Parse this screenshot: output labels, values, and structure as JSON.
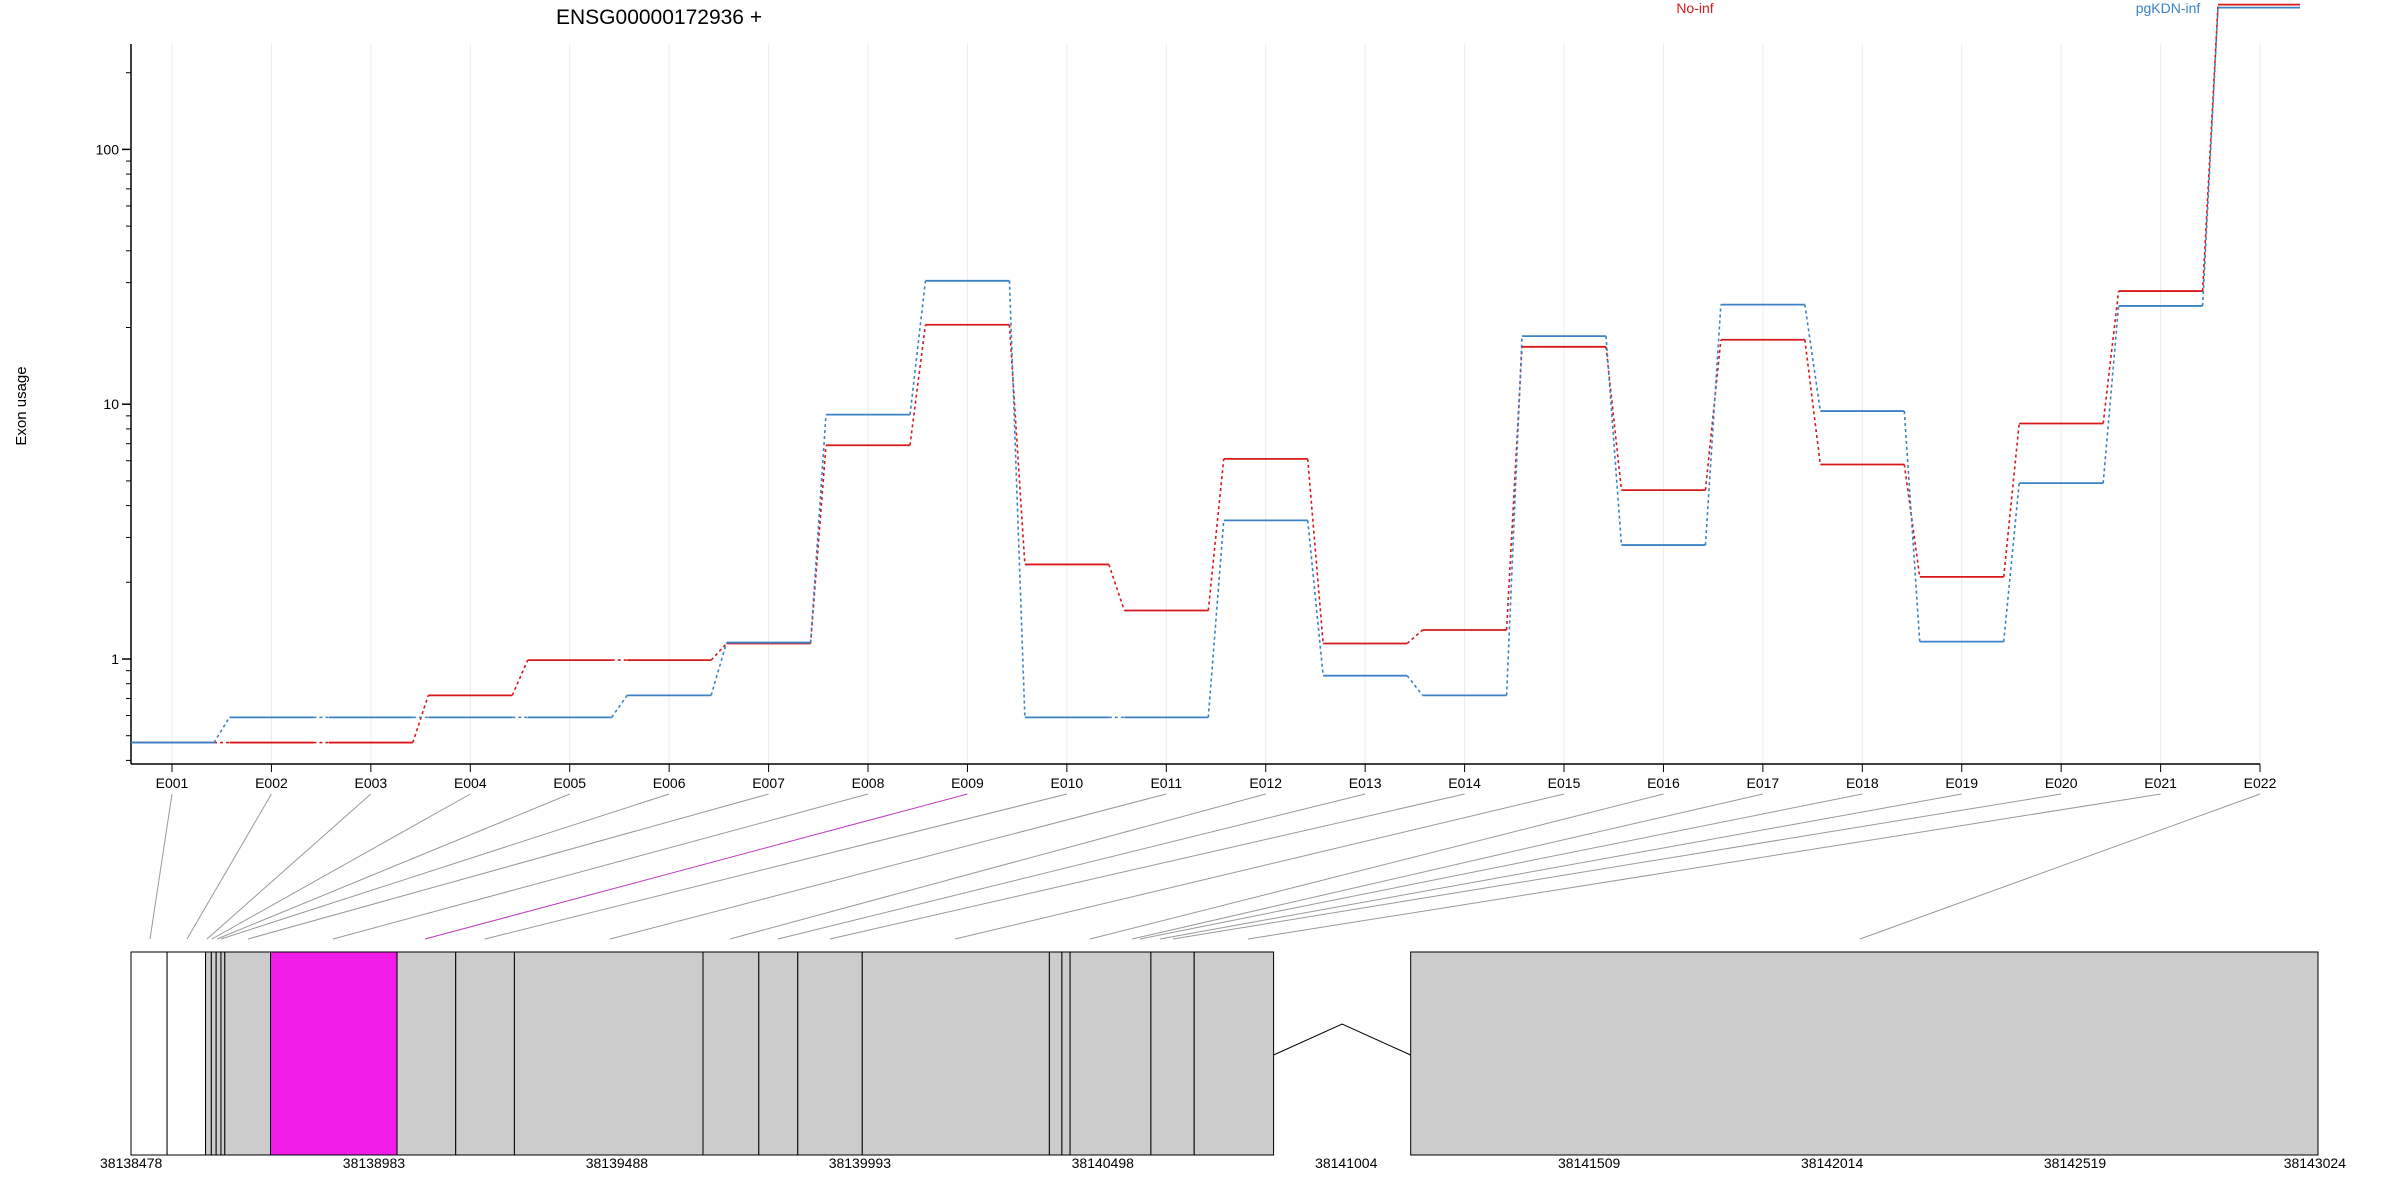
{
  "chart_data": {
    "type": "line",
    "title": "ENSG00000172936 +",
    "ylabel": "Exon usage",
    "xlabel": "",
    "y_scale": "log",
    "y_ticks": [
      "1",
      "10",
      "100"
    ],
    "y_tick_values": [
      1,
      10,
      100
    ],
    "grid": "vertical",
    "legend_placement": "top-right",
    "categories": [
      "E001",
      "E002",
      "E003",
      "E004",
      "E005",
      "E006",
      "E007",
      "E008",
      "E009",
      "E010",
      "E011",
      "E012",
      "E013",
      "E014",
      "E015",
      "E016",
      "E017",
      "E018",
      "E019",
      "E020",
      "E021",
      "E022"
    ],
    "series": [
      {
        "name": "No-inf",
        "color": "#d7191c",
        "values": [
          0.47,
          0.47,
          0.47,
          0.72,
          0.99,
          0.99,
          1.15,
          6.9,
          20.5,
          2.35,
          1.55,
          6.1,
          1.15,
          1.3,
          16.8,
          4.6,
          17.9,
          5.8,
          2.1,
          8.4,
          27.8,
          370
        ]
      },
      {
        "name": "pgKDN-inf",
        "color": "#3b83c4",
        "values": [
          0.47,
          0.59,
          0.59,
          0.59,
          0.59,
          0.72,
          1.16,
          9.1,
          30.5,
          0.59,
          0.59,
          3.5,
          0.86,
          0.72,
          18.5,
          2.8,
          24.6,
          9.4,
          1.17,
          4.9,
          24.3,
          360
        ]
      }
    ],
    "gene_model": {
      "coordinate_labels": [
        "38138478",
        "38138983",
        "38139488",
        "38139993",
        "38140498",
        "38141004",
        "38141509",
        "38142014",
        "38142519",
        "38143024"
      ],
      "coordinate_values": [
        38138478,
        38138983,
        38139488,
        38139993,
        38140498,
        38141004,
        38141509,
        38142014,
        38142519,
        38143024
      ],
      "exons": [
        {
          "id": "E001",
          "start": 38138478,
          "end": 38138553,
          "fill": "#ffffff"
        },
        {
          "id": "E002",
          "start": 38138553,
          "end": 38138633,
          "fill": "#ffffff"
        },
        {
          "id": "E003",
          "start": 38138633,
          "end": 38138645,
          "fill": "#cccccc"
        },
        {
          "id": "E004",
          "start": 38138645,
          "end": 38138655,
          "fill": "#cccccc"
        },
        {
          "id": "E005",
          "start": 38138655,
          "end": 38138665,
          "fill": "#cccccc"
        },
        {
          "id": "E006",
          "start": 38138665,
          "end": 38138673,
          "fill": "#cccccc"
        },
        {
          "id": "E007",
          "start": 38138673,
          "end": 38138768,
          "fill": "#cccccc"
        },
        {
          "id": "E008",
          "start": 38138768,
          "end": 38139031,
          "fill": "#f21ce8"
        },
        {
          "id": "E009",
          "start": 38139031,
          "end": 38139153,
          "fill": "#cccccc"
        },
        {
          "id": "E010",
          "start": 38139153,
          "end": 38139275,
          "fill": "#cccccc"
        },
        {
          "id": "E011",
          "start": 38139275,
          "end": 38139667,
          "fill": "#cccccc"
        },
        {
          "id": "E012",
          "start": 38139667,
          "end": 38139783,
          "fill": "#cccccc"
        },
        {
          "id": "E013",
          "start": 38139783,
          "end": 38139864,
          "fill": "#cccccc"
        },
        {
          "id": "E014",
          "start": 38139864,
          "end": 38139998,
          "fill": "#cccccc"
        },
        {
          "id": "E015",
          "start": 38139998,
          "end": 38140387,
          "fill": "#cccccc"
        },
        {
          "id": "E016",
          "start": 38140387,
          "end": 38140413,
          "fill": "#cccccc"
        },
        {
          "id": "E017",
          "start": 38140413,
          "end": 38140430,
          "fill": "#cccccc"
        },
        {
          "id": "E018",
          "start": 38140430,
          "end": 38140598,
          "fill": "#cccccc"
        },
        {
          "id": "E019",
          "start": 38140598,
          "end": 38140688,
          "fill": "#cccccc"
        },
        {
          "id": "E020",
          "start": 38140688,
          "end": 38140853,
          "fill": "#cccccc"
        },
        {
          "id": "E021",
          "start": 38141138,
          "end": 38143024,
          "fill": "#cccccc"
        },
        {
          "id": "E022",
          "start": 38141138,
          "end": 38143024,
          "fill": "#cccccc"
        }
      ],
      "intron": {
        "start": 38140853,
        "end": 38141138
      },
      "highlight_exon": "E009",
      "highlight_color": "#c03cc0"
    }
  }
}
